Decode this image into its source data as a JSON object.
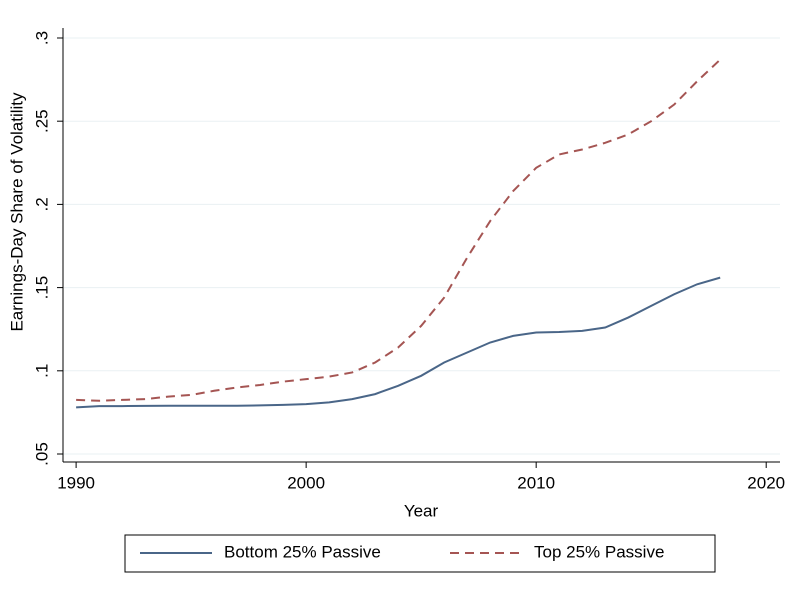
{
  "chart_data": {
    "type": "line",
    "x_label": "Year",
    "y_label": "Earnings-Day Share of Volatility",
    "x": [
      1990,
      1991,
      1992,
      1993,
      1994,
      1995,
      1996,
      1997,
      1998,
      1999,
      2000,
      2001,
      2002,
      2003,
      2004,
      2005,
      2006,
      2007,
      2008,
      2009,
      2010,
      2011,
      2012,
      2013,
      2014,
      2015,
      2016,
      2017,
      2018
    ],
    "series": [
      {
        "name": "Bottom 25% Passive",
        "color": "#4a6688",
        "dash": "solid",
        "values": [
          0.078,
          0.0788,
          0.0788,
          0.0789,
          0.079,
          0.079,
          0.079,
          0.079,
          0.0792,
          0.0795,
          0.08,
          0.081,
          0.083,
          0.086,
          0.091,
          0.097,
          0.105,
          0.111,
          0.117,
          0.121,
          0.123,
          0.1233,
          0.124,
          0.126,
          0.132,
          0.139,
          0.146,
          0.152,
          0.156
        ]
      },
      {
        "name": "Top 25% Passive",
        "color": "#a55553",
        "dash": "dashed",
        "values": [
          0.0825,
          0.082,
          0.0825,
          0.083,
          0.0845,
          0.0855,
          0.088,
          0.09,
          0.0915,
          0.0935,
          0.095,
          0.0965,
          0.099,
          0.105,
          0.114,
          0.127,
          0.144,
          0.168,
          0.19,
          0.208,
          0.222,
          0.23,
          0.233,
          0.237,
          0.242,
          0.25,
          0.26,
          0.274,
          0.287
        ]
      }
    ],
    "xlim": [
      1989.43,
      2020.6
    ],
    "xticks": [
      1990,
      2000,
      2010,
      2020
    ],
    "ylim": [
      0.0452,
      0.306
    ],
    "yticks": [
      {
        "value": 0.05,
        "label": ".05"
      },
      {
        "value": 0.1,
        "label": ".1"
      },
      {
        "value": 0.15,
        "label": ".15"
      },
      {
        "value": 0.2,
        "label": ".2"
      },
      {
        "value": 0.25,
        "label": ".25"
      },
      {
        "value": 0.3,
        "label": ".3"
      }
    ],
    "grid": true,
    "legend": "bottom"
  }
}
